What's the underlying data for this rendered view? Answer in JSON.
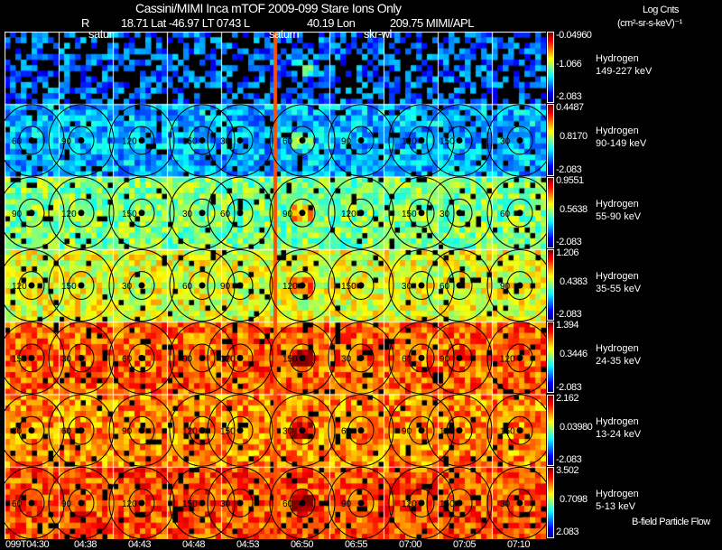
{
  "title": "Cassini/MIMI Inca mTOF  2009-099   Stare   Ions Only",
  "subtitle": {
    "r": "R",
    "rest": "18.71 Lat -46.97 LT 0743 L",
    "l": "40.19 Lon",
    "lon": "209.75  MIMI/APL"
  },
  "units": {
    "line1": "Log Cnts",
    "line2": "(cm²-sr-s-keV)⁻¹"
  },
  "annotations": {
    "a1": "satur",
    "a2": "saturn",
    "a3": "skr-wl"
  },
  "legend": "B-field Particle Flow",
  "chart_data": {
    "type": "heatmap",
    "title": "Cassini/MIMI Inca mTOF 2009-099 Stare Ions Only",
    "x_ticks": [
      "099T04:30",
      "04:38",
      "04:43",
      "04:48",
      "04:53",
      "06:50",
      "06:55",
      "07:00",
      "07:05",
      "07:10"
    ],
    "rows": [
      {
        "species": "Hydrogen",
        "energy": "149-227 keV",
        "max": "-0.04960",
        "mid": "-1.066",
        "min": "-2.083",
        "level": 0.22
      },
      {
        "species": "Hydrogen",
        "energy": "90-149 keV",
        "max": "0.4487",
        "mid": "0.8170",
        "min": "-2.083",
        "level": 0.3
      },
      {
        "species": "Hydrogen",
        "energy": "55-90 keV",
        "max": "0.9551",
        "mid": "0.5638",
        "min": "-2.083",
        "level": 0.5
      },
      {
        "species": "Hydrogen",
        "energy": "35-55 keV",
        "max": "1.206",
        "mid": "0.4383",
        "min": "-2.083",
        "level": 0.6
      },
      {
        "species": "Hydrogen",
        "energy": "24-35 keV",
        "max": "1.394",
        "mid": "0.3446",
        "min": "-2.083",
        "level": 0.78
      },
      {
        "species": "Hydrogen",
        "energy": "13-24 keV",
        "max": "2.162",
        "mid": "0.03980",
        "min": "-2.083",
        "level": 0.74
      },
      {
        "species": "Hydrogen",
        "energy": "5-13 keV",
        "max": "3.502",
        "mid": "0.7098",
        "min": "2.083",
        "level": 0.8
      }
    ],
    "contour_labels": [
      "30",
      "60",
      "90",
      "120",
      "150"
    ],
    "colormap": "jet"
  }
}
